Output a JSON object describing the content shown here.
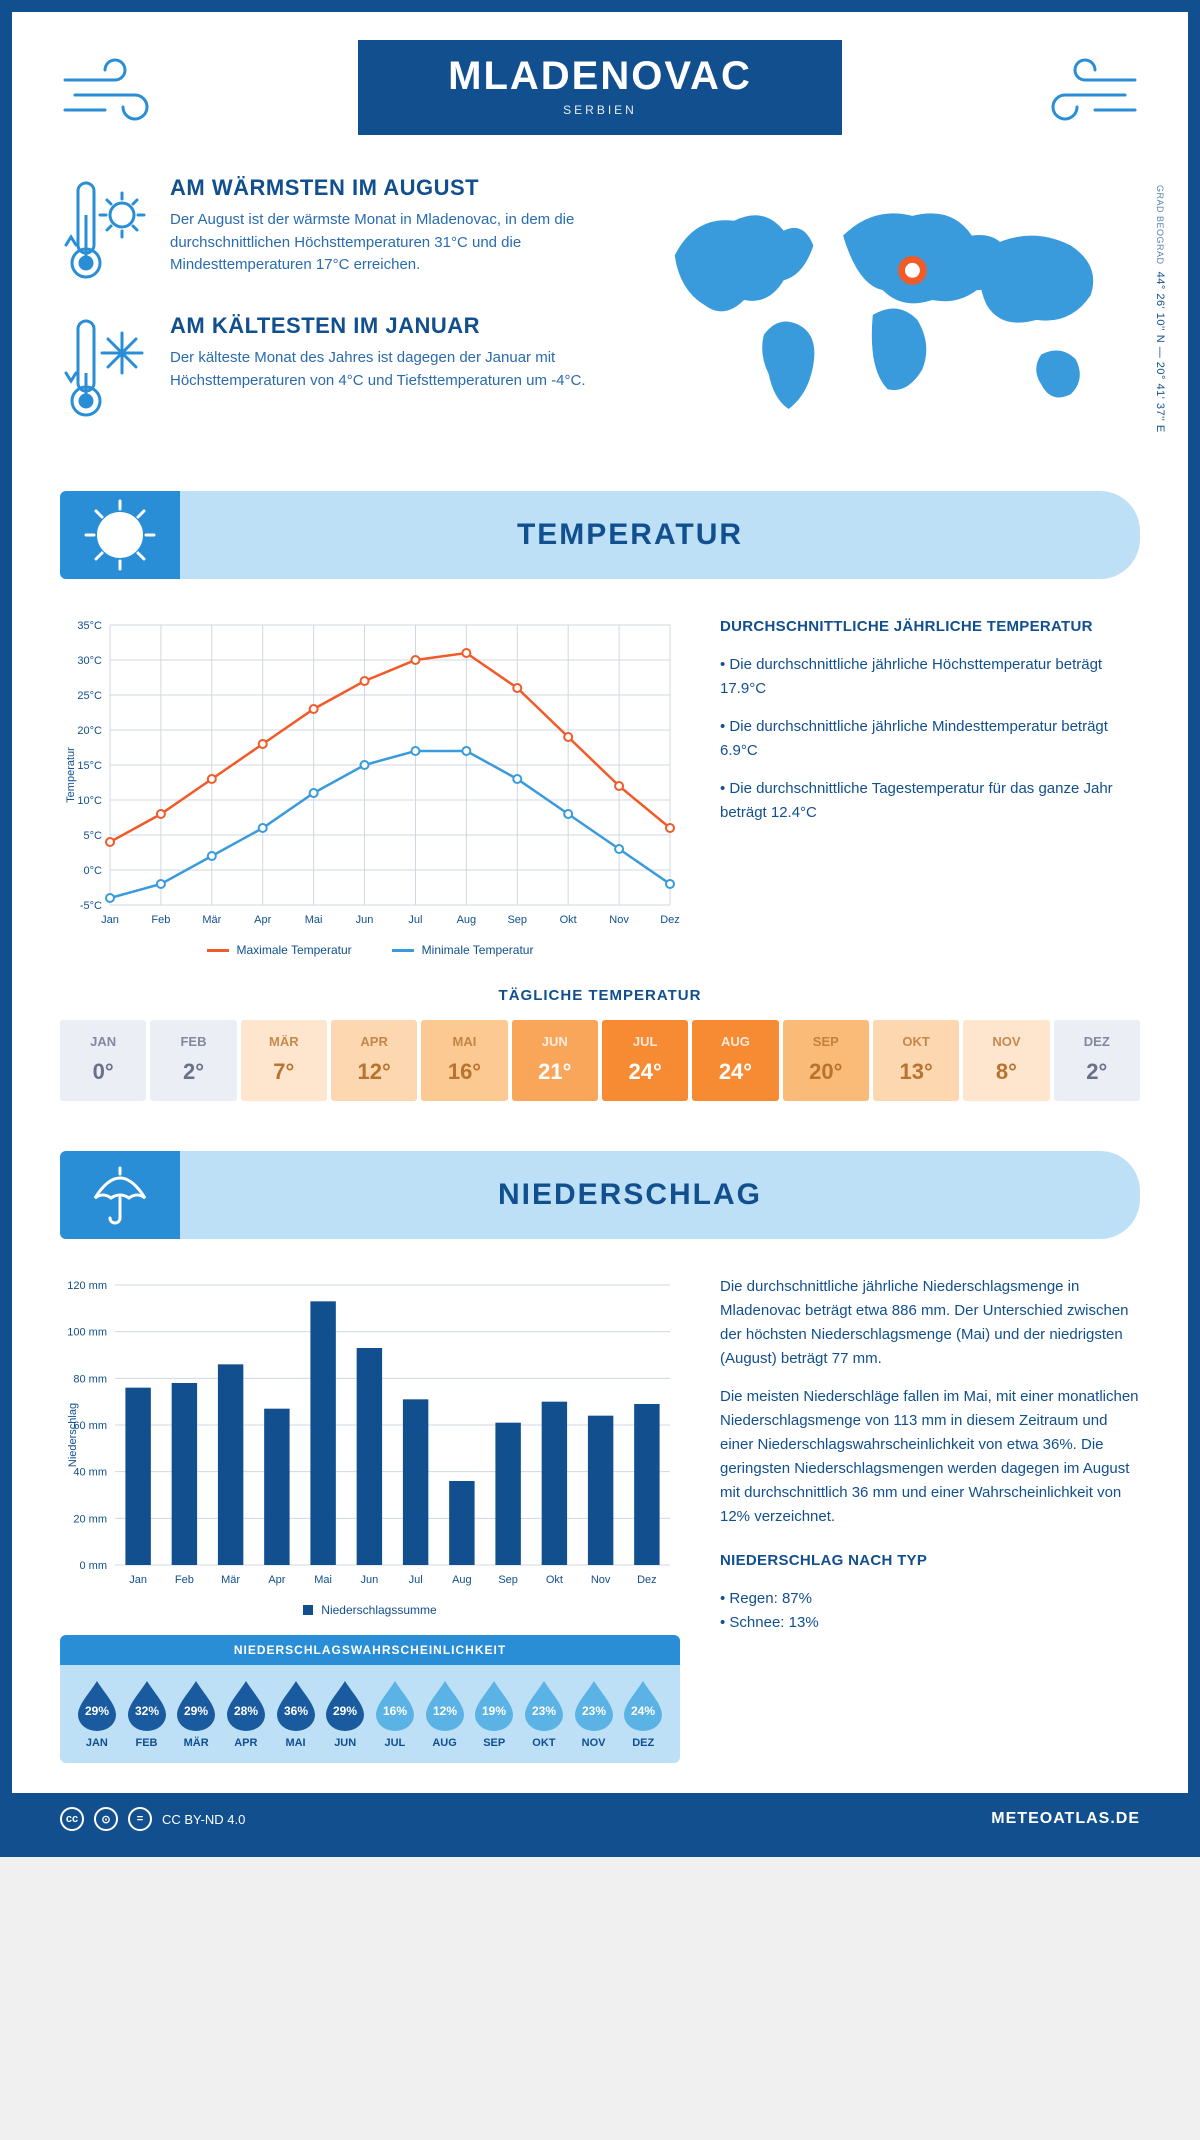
{
  "header": {
    "title": "MLADENOVAC",
    "country": "SERBIEN"
  },
  "coords": {
    "line": "44° 26' 10'' N — 20° 41' 37'' E",
    "sub": "GRAD BEOGRAD"
  },
  "warmest": {
    "title": "AM WÄRMSTEN IM AUGUST",
    "text": "Der August ist der wärmste Monat in Mladenovac, in dem die durchschnittlichen Höchsttemperaturen 31°C und die Mindesttemperaturen 17°C erreichen."
  },
  "coldest": {
    "title": "AM KÄLTESTEN IM JANUAR",
    "text": "Der kälteste Monat des Jahres ist dagegen der Januar mit Höchsttemperaturen von 4°C und Tiefsttemperaturen um -4°C."
  },
  "temp_section_title": "TEMPERATUR",
  "temp_chart": {
    "type": "line",
    "months": [
      "Jan",
      "Feb",
      "Mär",
      "Apr",
      "Mai",
      "Jun",
      "Jul",
      "Aug",
      "Sep",
      "Okt",
      "Nov",
      "Dez"
    ],
    "max": [
      4,
      8,
      13,
      18,
      23,
      27,
      30,
      31,
      26,
      19,
      12,
      6
    ],
    "min": [
      -4,
      -2,
      2,
      6,
      11,
      15,
      17,
      17,
      13,
      8,
      3,
      -2
    ],
    "max_color": "#f15a29",
    "min_color": "#3a9bdc",
    "grid_color": "#d0d7e2",
    "ylim": [
      -5,
      35
    ],
    "ytick": 5,
    "ylabel": "Temperatur",
    "legend_max": "Maximale Temperatur",
    "legend_min": "Minimale Temperatur"
  },
  "temp_side": {
    "heading": "DURCHSCHNITTLICHE JÄHRLICHE TEMPERATUR",
    "b1": "• Die durchschnittliche jährliche Höchsttemperatur beträgt 17.9°C",
    "b2": "• Die durchschnittliche jährliche Mindesttemperatur beträgt 6.9°C",
    "b3": "• Die durchschnittliche Tagestemperatur für das ganze Jahr beträgt 12.4°C"
  },
  "daily_temp": {
    "title": "TÄGLICHE TEMPERATUR",
    "months": [
      "JAN",
      "FEB",
      "MÄR",
      "APR",
      "MAI",
      "JUN",
      "JUL",
      "AUG",
      "SEP",
      "OKT",
      "NOV",
      "DEZ"
    ],
    "values": [
      "0°",
      "2°",
      "7°",
      "12°",
      "16°",
      "21°",
      "24°",
      "24°",
      "20°",
      "13°",
      "8°",
      "2°"
    ],
    "bg": [
      "#eceef6",
      "#eceef6",
      "#fde5ce",
      "#fcd7b0",
      "#fbc991",
      "#f9a65a",
      "#f68b33",
      "#f68b33",
      "#fbbb78",
      "#fcd7b0",
      "#fde5ce",
      "#eceef6"
    ],
    "fg": [
      "#6a6f8a",
      "#6a6f8a",
      "#b8742e",
      "#b8742e",
      "#b8742e",
      "#ffffff",
      "#ffffff",
      "#ffffff",
      "#b8742e",
      "#b8742e",
      "#b8742e",
      "#6a6f8a"
    ]
  },
  "precip_section_title": "NIEDERSCHLAG",
  "precip_chart": {
    "type": "bar",
    "months": [
      "Jan",
      "Feb",
      "Mär",
      "Apr",
      "Mai",
      "Jun",
      "Jul",
      "Aug",
      "Sep",
      "Okt",
      "Nov",
      "Dez"
    ],
    "values": [
      76,
      78,
      86,
      67,
      113,
      93,
      71,
      36,
      61,
      70,
      64,
      69
    ],
    "bar_color": "#114f8f",
    "grid_color": "#d0d7e2",
    "ylim": [
      0,
      120
    ],
    "ytick": 20,
    "ylabel": "Niederschlag",
    "legend": "Niederschlagssumme"
  },
  "precip_text": {
    "p1": "Die durchschnittliche jährliche Niederschlagsmenge in Mladenovac beträgt etwa 886 mm. Der Unterschied zwischen der höchsten Niederschlagsmenge (Mai) und der niedrigsten (August) beträgt 77 mm.",
    "p2": "Die meisten Niederschläge fallen im Mai, mit einer monatlichen Niederschlagsmenge von 113 mm in diesem Zeitraum und einer Niederschlagswahrscheinlichkeit von etwa 36%. Die geringsten Niederschlagsmengen werden dagegen im August mit durchschnittlich 36 mm und einer Wahrscheinlichkeit von 12% verzeichnet.",
    "type_heading": "NIEDERSCHLAG NACH TYP",
    "type1": "• Regen: 87%",
    "type2": "• Schnee: 13%"
  },
  "prob": {
    "title": "NIEDERSCHLAGSWAHRSCHEINLICHKEIT",
    "months": [
      "JAN",
      "FEB",
      "MÄR",
      "APR",
      "MAI",
      "JUN",
      "JUL",
      "AUG",
      "SEP",
      "OKT",
      "NOV",
      "DEZ"
    ],
    "values": [
      "29%",
      "32%",
      "29%",
      "28%",
      "36%",
      "29%",
      "16%",
      "12%",
      "19%",
      "23%",
      "23%",
      "24%"
    ],
    "colors": [
      "#1a5a9e",
      "#1a5a9e",
      "#1a5a9e",
      "#1a5a9e",
      "#1a5a9e",
      "#1a5a9e",
      "#5ab3e4",
      "#5ab3e4",
      "#5ab3e4",
      "#5ab3e4",
      "#5ab3e4",
      "#5ab3e4"
    ]
  },
  "footer": {
    "license": "CC BY-ND 4.0",
    "brand": "METEOATLAS.DE"
  }
}
